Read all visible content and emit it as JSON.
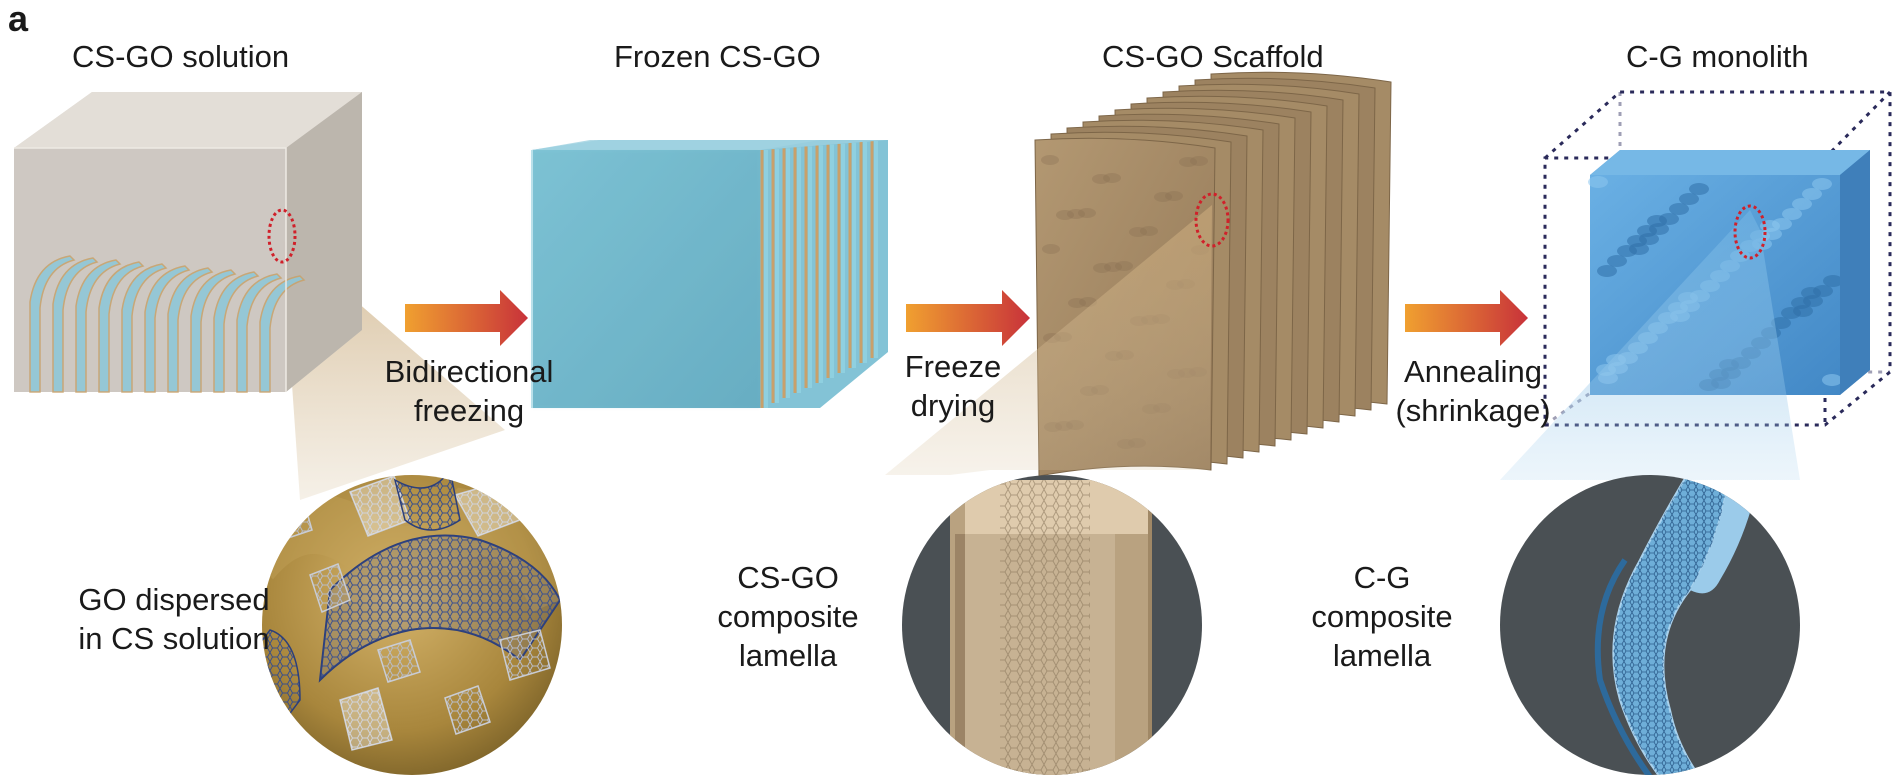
{
  "panel_label": "a",
  "stages": [
    {
      "title": "CS-GO solution"
    },
    {
      "title": "Frozen CS-GO"
    },
    {
      "title": "CS-GO Scaffold"
    },
    {
      "title": "C-G monolith"
    }
  ],
  "transitions": [
    {
      "label": "Bidirectional\nfreezing"
    },
    {
      "label": "Freeze\ndrying"
    },
    {
      "label": "Annealing\n(shrinkage)"
    }
  ],
  "insets": [
    {
      "caption": "GO dispersed\nin CS solution"
    },
    {
      "caption": "CS-GO\ncomposite\nlamella"
    },
    {
      "caption": "C-G\ncomposite\nlamella"
    }
  ],
  "colors": {
    "solution_box": "#c9c3ba",
    "frozen_face": "#7cc0d4",
    "scaffold": "#a48a66",
    "monolith": "#5b9fd6",
    "arrow_start": "#f0a030",
    "arrow_end": "#c8323a",
    "highlight_ring": "#d0202a",
    "dotted_frame": "#2a2a5a",
    "inset_dark": "#4a5054"
  }
}
